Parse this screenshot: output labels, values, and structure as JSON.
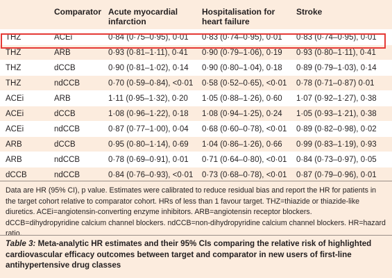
{
  "table": {
    "headers": [
      "",
      "Comparator",
      "Acute myocardial infarction",
      "Hospitalisation for heart failure",
      "Stroke"
    ],
    "rows": [
      [
        "THZ",
        "ACEi",
        "0·84 (0·75–0·95), 0·01",
        "0·83 (0·74–0·95), 0·01",
        "0·83 (0·74–0·95), 0·01"
      ],
      [
        "THZ",
        "ARB",
        "0·93 (0·81–1·11), 0·41",
        "0·90 (0·79–1·06), 0·19",
        "0·93 (0·80–1·11), 0·41"
      ],
      [
        "THZ",
        "dCCB",
        "0·90 (0·81–1·02), 0·14",
        "0·90 (0·80–1·04), 0·18",
        "0·89 (0·79–1·03), 0·14"
      ],
      [
        "THZ",
        "ndCCB",
        "0·70 (0·59–0·84), <0·01",
        "0·58 (0·52–0·65), <0·01",
        "0·78 (0·71–0·87) 0·01"
      ],
      [
        "ACEi",
        "ARB",
        "1·11 (0·95–1·32), 0·20",
        "1·05 (0·88–1·26), 0·60",
        "1·07 (0·92–1·27), 0·38"
      ],
      [
        "ACEi",
        "dCCB",
        "1·08 (0·96–1·22), 0·18",
        "1·08 (0·94–1·25), 0·24",
        "1·05 (0·93–1·21), 0·38"
      ],
      [
        "ACEi",
        "ndCCB",
        "0·87 (0·77–1·00), 0·04",
        "0·68 (0·60–0·78), <0·01",
        "0·89 (0·82–0·98), 0·02"
      ],
      [
        "ARB",
        "dCCB",
        "0·95 (0·80–1·14), 0·69",
        "1·04 (0·86–1·26), 0·66",
        "0·99 (0·83–1·19), 0·93"
      ],
      [
        "ARB",
        "ndCCB",
        "0·78 (0·69–0·91), 0·01",
        "0·71 (0·64–0·80), <0·01",
        "0·84 (0·73–0·97), 0·05"
      ],
      [
        "dCCB",
        "ndCCB",
        "0·84 (0·76–0·93), <0·01",
        "0·73 (0·68–0·78), <0·01",
        "0·87 (0·79–0·96), 0·01"
      ]
    ],
    "highlighted_row": 0
  },
  "footnote": "Data are HR (95% CI), p value. Estimates were calibrated to reduce residual bias and report the HR for patients in the target cohort relative to comparator cohort. HRs of less than 1 favour target. THZ=thiazide or thiazide-like diuretics. ACEi=angiotensin-converting enzyme inhibitors. ARB=angiotensin receptor blockers. dCCB=dihydropyridine calcium channel blockers. ndCCB=non-dihydropyridine calcium channel blockers. HR=hazard ratio.",
  "caption": {
    "label": "Table 3:",
    "text": " Meta-analytic HR estimates and their 95% CIs comparing the relative risk of highlighted cardiovascular efficacy outcomes between target and comparator in new users of first-line antihypertensive drug classes"
  },
  "colors": {
    "background": "#fcecde",
    "row_alt": "#ffffff",
    "highlight_border": "#e53935"
  }
}
